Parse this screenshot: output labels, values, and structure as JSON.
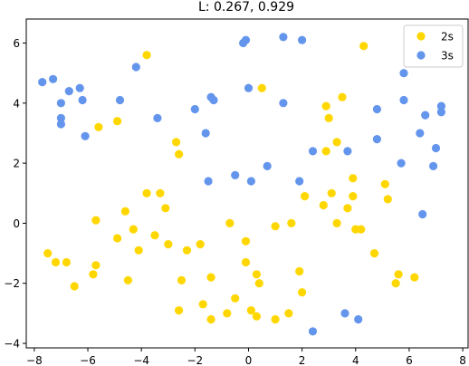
{
  "chart_data": {
    "type": "scatter",
    "title": "L: 0.267, 0.929",
    "xlabel": "",
    "ylabel": "",
    "xlim": [
      -8.3,
      8.2
    ],
    "ylim": [
      -4.15,
      6.8
    ],
    "xticks": [
      -8,
      -6,
      -4,
      -2,
      0,
      2,
      4,
      6,
      8
    ],
    "yticks": [
      -4,
      -2,
      0,
      2,
      4,
      6
    ],
    "grid": false,
    "legend_position": "top-right",
    "series": [
      {
        "name": "2s",
        "color": "#ffd700",
        "points": [
          [
            -3.8,
            5.6
          ],
          [
            4.3,
            5.9
          ],
          [
            0.5,
            4.5
          ],
          [
            3.5,
            4.2
          ],
          [
            2.9,
            3.9
          ],
          [
            3.0,
            3.5
          ],
          [
            -5.6,
            3.2
          ],
          [
            -4.9,
            3.4
          ],
          [
            -2.7,
            2.7
          ],
          [
            -2.6,
            2.3
          ],
          [
            3.3,
            2.7
          ],
          [
            2.9,
            2.4
          ],
          [
            3.9,
            1.5
          ],
          [
            -3.8,
            1.0
          ],
          [
            -3.3,
            1.0
          ],
          [
            3.1,
            1.0
          ],
          [
            2.1,
            0.9
          ],
          [
            3.9,
            0.9
          ],
          [
            5.1,
            1.3
          ],
          [
            5.2,
            0.8
          ],
          [
            -3.1,
            0.5
          ],
          [
            -4.6,
            0.4
          ],
          [
            2.8,
            0.6
          ],
          [
            3.7,
            0.5
          ],
          [
            -5.7,
            0.1
          ],
          [
            -0.7,
            0.0
          ],
          [
            1.0,
            -0.1
          ],
          [
            1.6,
            0.0
          ],
          [
            3.3,
            0.0
          ],
          [
            -4.3,
            -0.2
          ],
          [
            4.0,
            -0.2
          ],
          [
            4.2,
            -0.2
          ],
          [
            -4.9,
            -0.5
          ],
          [
            -3.5,
            -0.4
          ],
          [
            -3.0,
            -0.7
          ],
          [
            -0.1,
            -0.6
          ],
          [
            -4.1,
            -0.9
          ],
          [
            -2.3,
            -0.9
          ],
          [
            -1.8,
            -0.7
          ],
          [
            -7.5,
            -1.0
          ],
          [
            -7.2,
            -1.3
          ],
          [
            -6.8,
            -1.3
          ],
          [
            -5.7,
            -1.4
          ],
          [
            4.7,
            -1.0
          ],
          [
            -0.1,
            -1.3
          ],
          [
            -5.8,
            -1.7
          ],
          [
            -4.5,
            -1.9
          ],
          [
            -2.5,
            -1.9
          ],
          [
            -1.4,
            -1.8
          ],
          [
            0.3,
            -1.7
          ],
          [
            1.9,
            -1.6
          ],
          [
            5.6,
            -1.7
          ],
          [
            6.2,
            -1.8
          ],
          [
            -6.5,
            -2.1
          ],
          [
            0.4,
            -2.0
          ],
          [
            5.5,
            -2.0
          ],
          [
            2.0,
            -2.3
          ],
          [
            -0.5,
            -2.5
          ],
          [
            -2.6,
            -2.9
          ],
          [
            -1.7,
            -2.7
          ],
          [
            0.1,
            -2.9
          ],
          [
            -0.8,
            -3.0
          ],
          [
            -1.4,
            -3.2
          ],
          [
            0.3,
            -3.1
          ],
          [
            1.0,
            -3.2
          ],
          [
            1.5,
            -3.0
          ]
        ]
      },
      {
        "name": "3s",
        "color": "#6495ed",
        "points": [
          [
            -0.2,
            6.0
          ],
          [
            -0.1,
            6.1
          ],
          [
            1.3,
            6.2
          ],
          [
            2.0,
            6.1
          ],
          [
            -7.7,
            4.7
          ],
          [
            -7.3,
            4.8
          ],
          [
            -6.7,
            4.4
          ],
          [
            -6.3,
            4.5
          ],
          [
            -4.2,
            5.2
          ],
          [
            -6.2,
            4.1
          ],
          [
            -4.8,
            4.1
          ],
          [
            -7.0,
            4.0
          ],
          [
            -1.4,
            4.2
          ],
          [
            -1.3,
            4.1
          ],
          [
            0.0,
            4.5
          ],
          [
            1.3,
            4.0
          ],
          [
            5.8,
            5.0
          ],
          [
            5.8,
            4.1
          ],
          [
            -7.0,
            3.5
          ],
          [
            -7.0,
            3.3
          ],
          [
            -3.4,
            3.5
          ],
          [
            -2.0,
            3.8
          ],
          [
            4.8,
            3.8
          ],
          [
            6.6,
            3.6
          ],
          [
            7.2,
            3.9
          ],
          [
            7.2,
            3.7
          ],
          [
            -6.1,
            2.9
          ],
          [
            -1.6,
            3.0
          ],
          [
            6.4,
            3.0
          ],
          [
            4.8,
            2.8
          ],
          [
            2.4,
            2.4
          ],
          [
            3.7,
            2.4
          ],
          [
            7.0,
            2.5
          ],
          [
            0.7,
            1.9
          ],
          [
            5.7,
            2.0
          ],
          [
            6.9,
            1.9
          ],
          [
            -0.5,
            1.6
          ],
          [
            0.1,
            1.4
          ],
          [
            -1.5,
            1.4
          ],
          [
            1.9,
            1.4
          ],
          [
            6.5,
            0.3
          ],
          [
            3.6,
            -3.0
          ],
          [
            4.1,
            -3.2
          ],
          [
            2.4,
            -3.6
          ]
        ]
      }
    ]
  }
}
